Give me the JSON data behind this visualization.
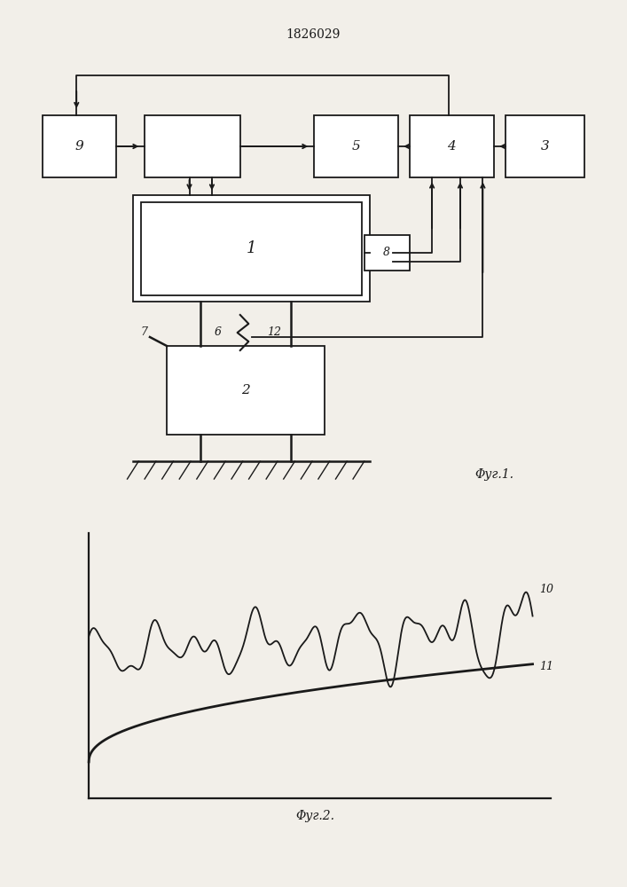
{
  "title": "1826029",
  "fig1_caption": "Φуг.1.",
  "fig2_caption": "Φуг.2.",
  "bg_color": "#f2efe9",
  "line_color": "#1a1a1a",
  "label_9": "9",
  "label_1": "1",
  "label_2": "2",
  "label_3": "3",
  "label_4": "4",
  "label_5": "5",
  "label_6": "6",
  "label_7": "7",
  "label_8": "8",
  "label_10": "10",
  "label_11": "11",
  "label_12": "12"
}
